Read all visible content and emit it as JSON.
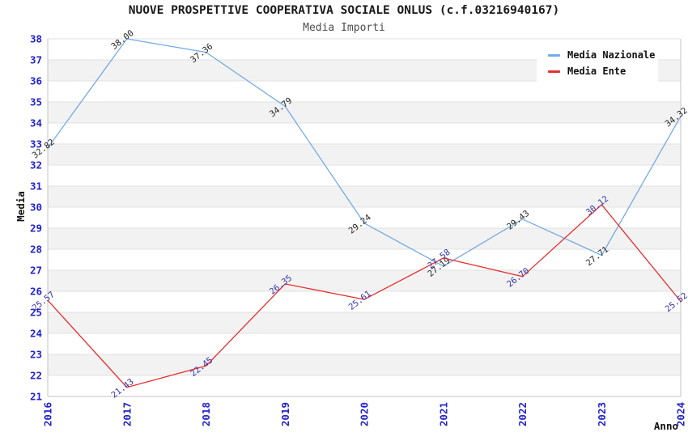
{
  "chart_data": {
    "type": "line",
    "title": "NUOVE PROSPETTIVE COOPERATIVA SOCIALE ONLUS (c.f.03216940167)",
    "subtitle": "Media Importi",
    "xlabel": "Anno",
    "ylabel": "Media",
    "x": [
      "2016",
      "2017",
      "2018",
      "2019",
      "2020",
      "2021",
      "2022",
      "2023",
      "2024"
    ],
    "series": [
      {
        "name": "Media Nazionale",
        "color": "#74abe2",
        "label_color": "#262626",
        "values": [
          32.82,
          38.0,
          37.36,
          34.79,
          29.24,
          27.19,
          29.43,
          27.71,
          34.32
        ]
      },
      {
        "name": "Media Ente",
        "color": "#e62e2e",
        "label_color": "#3434ad",
        "values": [
          25.57,
          21.43,
          22.45,
          26.35,
          25.61,
          27.58,
          26.7,
          30.12,
          25.52
        ]
      }
    ],
    "ylim": [
      21,
      38
    ],
    "ytick_step": 1,
    "grid": true,
    "band_fill": "#f2f2f2",
    "grid_color": "#e2e2e2",
    "axis_line_color": "#c6c6c6",
    "tick_label_color": "#2323cc",
    "legend_position": "top-right"
  }
}
